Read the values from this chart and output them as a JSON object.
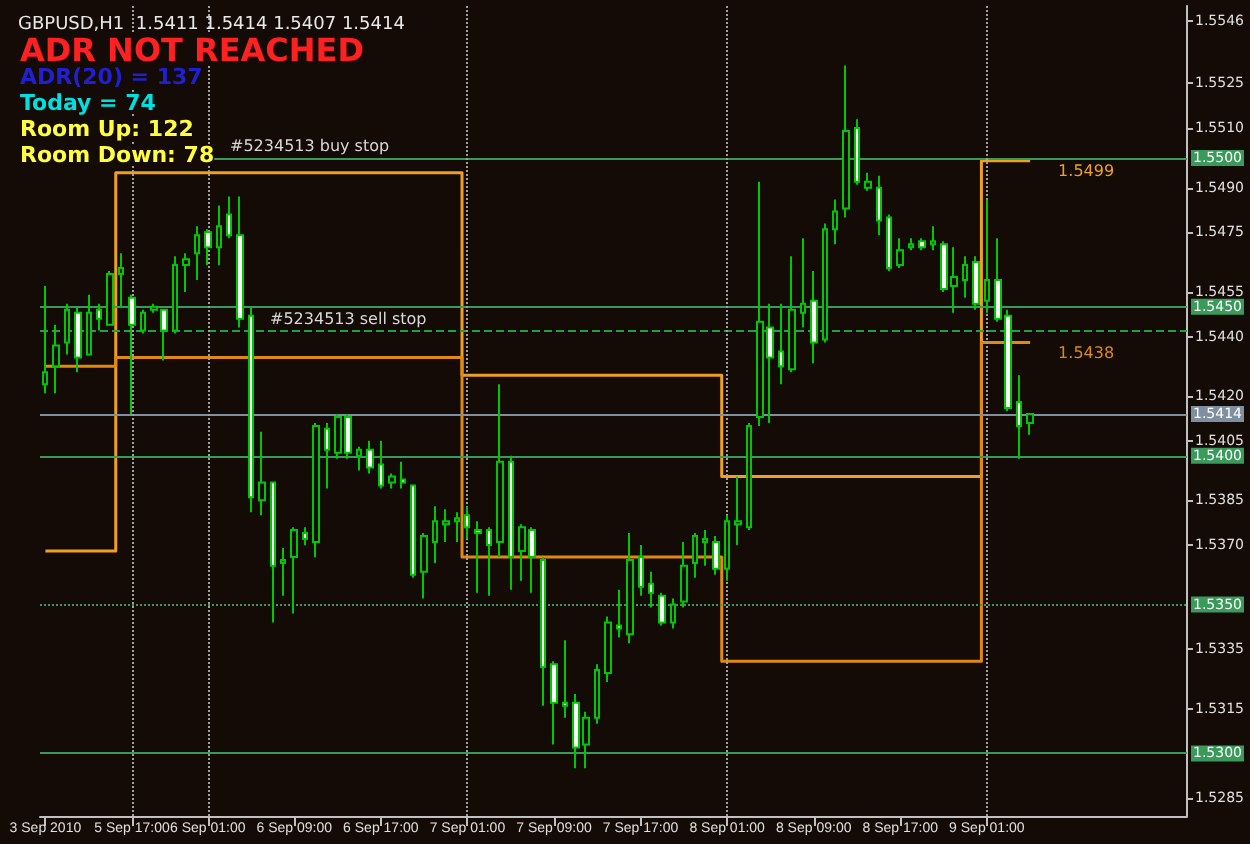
{
  "chart_data": {
    "type": "candlestick",
    "title": "GBPUSD,H1  1.5411 1.5414 1.5407 1.5414",
    "color": "#00c800",
    "categories": [
      "3 Sep 2010",
      null,
      null,
      null,
      null,
      null,
      null,
      null,
      "5 Sep 17:00",
      null,
      null,
      null,
      null,
      null,
      null,
      "6 Sep 01:00",
      null,
      null,
      null,
      null,
      null,
      null,
      null,
      "6 Sep 09:00",
      null,
      null,
      null,
      null,
      null,
      null,
      null,
      "6 Sep 17:00",
      null,
      null,
      null,
      null,
      null,
      null,
      null,
      "7 Sep 01:00",
      null,
      null,
      null,
      null,
      null,
      null,
      null,
      "7 Sep 09:00",
      null,
      null,
      null,
      null,
      null,
      null,
      null,
      "7 Sep 17:00",
      null,
      null,
      null,
      null,
      null,
      null,
      null,
      "8 Sep 01:00",
      null,
      null,
      null,
      null,
      null,
      null,
      null,
      "8 Sep 09:00",
      null,
      null,
      null,
      null,
      null,
      null,
      null,
      "8 Sep 17:00",
      null,
      null,
      null,
      null,
      null,
      null,
      null,
      "9 Sep 01:00",
      null,
      null,
      null,
      null
    ],
    "ohlc": [
      [
        1.5424,
        1.5457,
        1.5421,
        1.5428
      ],
      [
        1.543,
        1.5444,
        1.5421,
        1.5437
      ],
      [
        1.5438,
        1.5451,
        1.5434,
        1.5449
      ],
      [
        1.5448,
        1.545,
        1.5428,
        1.5433
      ],
      [
        1.5434,
        1.5454,
        1.5434,
        1.5448
      ],
      [
        1.5449,
        1.5451,
        1.5442,
        1.5446
      ],
      [
        1.5444,
        1.5462,
        1.5444,
        1.5461
      ],
      [
        1.5461,
        1.5468,
        1.545,
        1.5463
      ],
      [
        1.5453,
        1.5454,
        1.5414,
        1.5444
      ],
      [
        1.5442,
        1.5449,
        1.5441,
        1.5448
      ],
      [
        1.5449,
        1.5451,
        1.5448,
        1.545
      ],
      [
        1.5449,
        1.5449,
        1.5432,
        1.5442
      ],
      [
        1.5442,
        1.5467,
        1.5441,
        1.5464
      ],
      [
        1.5464,
        1.5468,
        1.5455,
        1.5466
      ],
      [
        1.5468,
        1.5477,
        1.5459,
        1.5474
      ],
      [
        1.5475,
        1.5476,
        1.5464,
        1.547
      ],
      [
        1.547,
        1.5484,
        1.5464,
        1.5477
      ],
      [
        1.5481,
        1.5487,
        1.5473,
        1.5474
      ],
      [
        1.5474,
        1.5487,
        1.5443,
        1.5446
      ],
      [
        1.5447,
        1.545,
        1.5381,
        1.5386
      ],
      [
        1.5385,
        1.5408,
        1.538,
        1.5391
      ],
      [
        1.5391,
        1.5391,
        1.5344,
        1.5363
      ],
      [
        1.5364,
        1.5369,
        1.5353,
        1.5365
      ],
      [
        1.5366,
        1.5376,
        1.5347,
        1.5375
      ],
      [
        1.5374,
        1.5376,
        1.537,
        1.5372
      ],
      [
        1.5371,
        1.5411,
        1.5366,
        1.541
      ],
      [
        1.5409,
        1.5411,
        1.5389,
        1.5402
      ],
      [
        1.5401,
        1.5414,
        1.5399,
        1.5413
      ],
      [
        1.5413,
        1.5414,
        1.5399,
        1.5401
      ],
      [
        1.54,
        1.5403,
        1.5395,
        1.5402
      ],
      [
        1.5402,
        1.5405,
        1.5394,
        1.5396
      ],
      [
        1.5397,
        1.5405,
        1.5389,
        1.539
      ],
      [
        1.5391,
        1.5394,
        1.5389,
        1.5393
      ],
      [
        1.5392,
        1.5398,
        1.5389,
        1.5391
      ],
      [
        1.539,
        1.539,
        1.5359,
        1.536
      ],
      [
        1.5361,
        1.5374,
        1.5352,
        1.5373
      ],
      [
        1.5371,
        1.5383,
        1.5364,
        1.5378
      ],
      [
        1.5377,
        1.5382,
        1.5371,
        1.5378
      ],
      [
        1.5378,
        1.5381,
        1.5371,
        1.5379
      ],
      [
        1.538,
        1.5383,
        1.5372,
        1.5376
      ],
      [
        1.5375,
        1.5378,
        1.5354,
        1.5374
      ],
      [
        1.5375,
        1.5376,
        1.5353,
        1.537
      ],
      [
        1.5371,
        1.5424,
        1.5366,
        1.5398
      ],
      [
        1.5398,
        1.54,
        1.5355,
        1.5366
      ],
      [
        1.5368,
        1.5377,
        1.5358,
        1.5376
      ],
      [
        1.5375,
        1.5376,
        1.5354,
        1.5366
      ],
      [
        1.5365,
        1.5366,
        1.5316,
        1.5329
      ],
      [
        1.533,
        1.5331,
        1.5303,
        1.5317
      ],
      [
        1.5317,
        1.5338,
        1.5312,
        1.5316
      ],
      [
        1.5317,
        1.532,
        1.5295,
        1.5302
      ],
      [
        1.5303,
        1.5314,
        1.5295,
        1.5312
      ],
      [
        1.5312,
        1.533,
        1.531,
        1.5328
      ],
      [
        1.5327,
        1.5346,
        1.5324,
        1.5344
      ],
      [
        1.5343,
        1.5355,
        1.5339,
        1.5342
      ],
      [
        1.534,
        1.5374,
        1.5337,
        1.5365
      ],
      [
        1.5366,
        1.537,
        1.5353,
        1.5356
      ],
      [
        1.5357,
        1.5361,
        1.5349,
        1.5354
      ],
      [
        1.5353,
        1.5354,
        1.5343,
        1.5344
      ],
      [
        1.5344,
        1.5352,
        1.5342,
        1.535
      ],
      [
        1.5351,
        1.5371,
        1.5349,
        1.5363
      ],
      [
        1.5364,
        1.5374,
        1.5359,
        1.5373
      ],
      [
        1.5371,
        1.5375,
        1.5363,
        1.5372
      ],
      [
        1.5371,
        1.5373,
        1.536,
        1.5362
      ],
      [
        1.5362,
        1.538,
        1.5358,
        1.5378
      ],
      [
        1.5377,
        1.5393,
        1.537,
        1.5378
      ],
      [
        1.5376,
        1.5411,
        1.5375,
        1.541
      ],
      [
        1.5413,
        1.5492,
        1.541,
        1.5445
      ],
      [
        1.5443,
        1.5451,
        1.5411,
        1.5433
      ],
      [
        1.5435,
        1.5451,
        1.5424,
        1.543
      ],
      [
        1.5429,
        1.5467,
        1.5428,
        1.5449
      ],
      [
        1.5448,
        1.5473,
        1.5443,
        1.5451
      ],
      [
        1.5452,
        1.5462,
        1.5431,
        1.5438
      ],
      [
        1.5439,
        1.5478,
        1.5438,
        1.5476
      ],
      [
        1.5476,
        1.5486,
        1.5471,
        1.5482
      ],
      [
        1.5483,
        1.5531,
        1.548,
        1.5509
      ],
      [
        1.551,
        1.5513,
        1.5491,
        1.5492
      ],
      [
        1.549,
        1.5495,
        1.5489,
        1.5492
      ],
      [
        1.549,
        1.5494,
        1.5474,
        1.5479
      ],
      [
        1.548,
        1.5481,
        1.5462,
        1.5463
      ],
      [
        1.5464,
        1.5473,
        1.5463,
        1.5469
      ],
      [
        1.547,
        1.5473,
        1.5469,
        1.5471
      ],
      [
        1.5472,
        1.5473,
        1.5469,
        1.547
      ],
      [
        1.5471,
        1.5477,
        1.5469,
        1.5472
      ],
      [
        1.5471,
        1.5472,
        1.5455,
        1.5456
      ],
      [
        1.5457,
        1.547,
        1.5448,
        1.546
      ],
      [
        1.5459,
        1.5467,
        1.5453,
        1.5464
      ],
      [
        1.5465,
        1.5467,
        1.5449,
        1.5451
      ],
      [
        1.5452,
        1.5486,
        1.5448,
        1.5459
      ],
      [
        1.5459,
        1.5473,
        1.5445,
        1.5446
      ],
      [
        1.5447,
        1.5449,
        1.5415,
        1.5416
      ],
      [
        1.5418,
        1.5427,
        1.5399,
        1.541
      ],
      [
        1.5411,
        1.5414,
        1.5407,
        1.5414
      ]
    ],
    "series": [
      {
        "type": "step",
        "color": "#f0a020",
        "values": [
          1.5368,
          1.5368,
          1.5368,
          1.5368,
          1.5368,
          1.5368,
          1.5368,
          1.5495,
          1.5495,
          1.5495,
          1.5495,
          1.5495,
          1.5495,
          1.5495,
          1.5495,
          1.5495,
          1.5495,
          1.5495,
          1.5495,
          1.5495,
          1.5495,
          1.5495,
          1.5495,
          1.5495,
          1.5495,
          1.5495,
          1.5495,
          1.5495,
          1.5495,
          1.5495,
          1.5495,
          1.5495,
          1.5495,
          1.5495,
          1.5495,
          1.5495,
          1.5495,
          1.5495,
          1.5495,
          1.5427,
          1.5427,
          1.5427,
          1.5427,
          1.5427,
          1.5427,
          1.5427,
          1.5427,
          1.5427,
          1.5427,
          1.5427,
          1.5427,
          1.5427,
          1.5427,
          1.5427,
          1.5427,
          1.5427,
          1.5427,
          1.5427,
          1.5427,
          1.5427,
          1.5427,
          1.5427,
          1.5427,
          1.5393,
          1.5393,
          1.5393,
          1.5393,
          1.5393,
          1.5393,
          1.5393,
          1.5393,
          1.5393,
          1.5393,
          1.5393,
          1.5393,
          1.5393,
          1.5393,
          1.5393,
          1.5393,
          1.5393,
          1.5393,
          1.5393,
          1.5393,
          1.5393,
          1.5393,
          1.5393,
          1.5393,
          1.5499,
          1.5499,
          1.5499,
          1.5499,
          1.5499
        ],
        "value_labels": [
          null,
          null,
          null,
          null,
          null,
          null,
          null,
          null,
          null,
          null,
          null,
          null,
          null,
          null,
          null,
          null,
          null,
          null,
          null,
          null,
          null,
          null,
          null,
          null,
          null,
          null,
          null,
          null,
          null,
          null,
          null,
          null,
          null,
          null,
          null,
          null,
          null,
          null,
          null,
          null,
          null,
          null,
          null,
          null,
          null,
          null,
          null,
          null,
          null,
          null,
          null,
          null,
          null,
          null,
          null,
          null,
          null,
          null,
          null,
          null,
          null,
          null,
          null,
          null,
          null,
          null,
          null,
          null,
          null,
          null,
          null,
          null,
          null,
          null,
          null,
          null,
          null,
          null,
          null,
          null,
          null,
          null,
          null,
          null,
          null,
          null,
          null,
          null,
          null,
          null,
          null,
          "1.5499"
        ]
      },
      {
        "type": "step",
        "color": "#e08a10",
        "values": [
          1.543,
          1.543,
          1.543,
          1.543,
          1.543,
          1.543,
          1.543,
          1.5433,
          1.5433,
          1.5433,
          1.5433,
          1.5433,
          1.5433,
          1.5433,
          1.5433,
          1.5433,
          1.5433,
          1.5433,
          1.5433,
          1.5433,
          1.5433,
          1.5433,
          1.5433,
          1.5433,
          1.5433,
          1.5433,
          1.5433,
          1.5433,
          1.5433,
          1.5433,
          1.5433,
          1.5433,
          1.5433,
          1.5433,
          1.5433,
          1.5433,
          1.5433,
          1.5433,
          1.5433,
          1.5366,
          1.5366,
          1.5366,
          1.5366,
          1.5366,
          1.5366,
          1.5366,
          1.5366,
          1.5366,
          1.5366,
          1.5366,
          1.5366,
          1.5366,
          1.5366,
          1.5366,
          1.5366,
          1.5366,
          1.5366,
          1.5366,
          1.5366,
          1.5366,
          1.5366,
          1.5366,
          1.5366,
          1.5331,
          1.5331,
          1.5331,
          1.5331,
          1.5331,
          1.5331,
          1.5331,
          1.5331,
          1.5331,
          1.5331,
          1.5331,
          1.5331,
          1.5331,
          1.5331,
          1.5331,
          1.5331,
          1.5331,
          1.5331,
          1.5331,
          1.5331,
          1.5331,
          1.5331,
          1.5331,
          1.5331,
          1.5438,
          1.5438,
          1.5438,
          1.5438,
          1.5438
        ],
        "value_labels": [
          null,
          null,
          null,
          null,
          null,
          null,
          null,
          null,
          null,
          null,
          null,
          null,
          null,
          null,
          null,
          null,
          null,
          null,
          null,
          null,
          null,
          null,
          null,
          null,
          null,
          null,
          null,
          null,
          null,
          null,
          null,
          null,
          null,
          null,
          null,
          null,
          null,
          null,
          null,
          null,
          null,
          null,
          null,
          null,
          null,
          null,
          null,
          null,
          null,
          null,
          null,
          null,
          null,
          null,
          null,
          null,
          null,
          null,
          null,
          null,
          null,
          null,
          null,
          null,
          null,
          null,
          null,
          null,
          null,
          null,
          null,
          null,
          null,
          null,
          null,
          null,
          null,
          null,
          null,
          null,
          null,
          null,
          null,
          null,
          null,
          null,
          null,
          null,
          null,
          null,
          null,
          "1.5438"
        ]
      }
    ],
    "marker": "none",
    "line_style": "solid",
    "ylim": [
      1.5279,
      1.5551
    ],
    "yticks": [
      1.5285,
      1.5315,
      1.5335,
      {
        "value": 1.537,
        "label": "1.5370"
      },
      1.5385,
      1.5405,
      {
        "value": 1.542,
        "label": "1.5420"
      },
      {
        "value": 1.544,
        "label": "1.5440"
      },
      1.5455,
      1.5475,
      {
        "value": 1.549,
        "label": "1.5490"
      },
      {
        "value": 1.551,
        "label": "1.5510"
      },
      1.5525,
      1.5546
    ],
    "grid": false,
    "ref_lines": [
      {
        "axis": "y",
        "value": 1.55,
        "label": "1.5500",
        "color": "#3a9a5a"
      },
      {
        "axis": "y",
        "value": 1.545,
        "label": "1.5450",
        "color": "#3a9a5a"
      },
      {
        "axis": "y",
        "value": 1.54,
        "label": "1.5400",
        "color": "#3a9a5a"
      },
      {
        "axis": "y",
        "value": 1.535,
        "label": "1.5350",
        "color": "#3a9a5a",
        "line_style": "dotted"
      },
      {
        "axis": "y",
        "value": 1.53,
        "label": "1.5300",
        "color": "#3a9a5a"
      },
      {
        "axis": "y",
        "value": 1.5414,
        "label": "1.5414",
        "color": "#7f8fa0"
      },
      {
        "axis": "y",
        "value": 1.5442,
        "color": "#20a040",
        "line_style": "dashed"
      },
      {
        "axis": "x",
        "value": "5 Sep 17:00",
        "color": "#a0a0a0",
        "line_style": "dotted"
      },
      {
        "axis": "x",
        "value": "6 Sep 01:00",
        "color": "#a0a0a0",
        "line_style": "dotted"
      },
      {
        "axis": "x",
        "value": "7 Sep 01:00",
        "color": "#a0a0a0",
        "line_style": "dotted"
      },
      {
        "axis": "x",
        "value": "8 Sep 01:00",
        "color": "#a0a0a0",
        "line_style": "dotted"
      },
      {
        "axis": "x",
        "value": "9 Sep 01:00",
        "color": "#a0a0a0",
        "line_style": "dotted"
      }
    ],
    "annotations": [
      "ADR NOT REACHED",
      "ADR(20) = 137",
      "Today = 74",
      "Room Up: 122",
      "Room Down: 78",
      {
        "text": "#5234513 buy stop",
        "y": 1.55
      },
      {
        "text": "#5234513 sell stop",
        "y": 1.5442
      }
    ]
  }
}
